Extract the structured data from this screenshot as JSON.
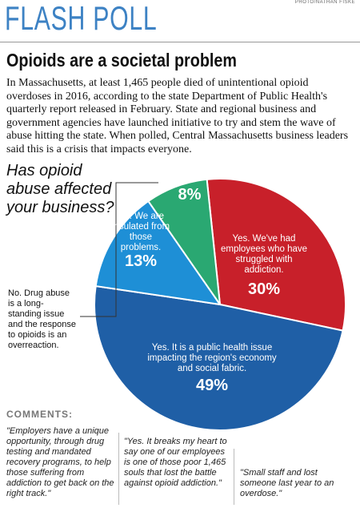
{
  "header": {
    "title": "FLASH POLL",
    "credit": "PHOTO/NATHAN FISKE"
  },
  "headline": "Opioids are a societal problem",
  "intro": "In Massachusetts, at least 1,465 people died of unintentional opioid overdoses in 2016, according to the state Department of Public Health's quarterly report released in February. State and regional business and government agencies have launched initiative to try and stem the wave of abuse hitting the state. When polled, Central Massachusetts business leaders said this is a crisis that impacts everyone.",
  "chart_data": {
    "type": "pie",
    "title": "Has opioid abuse affected your business?",
    "categories": [
      "Yes. We've had employees who have struggled with addiction.",
      "Yes. It is a public health issue impacting the region's economy and social fabric.",
      "No. We are insulated from those problems.",
      "No. Drug abuse is a long-standing issue and the response to opioids is an overreaction."
    ],
    "values": [
      30,
      49,
      13,
      8
    ],
    "value_labels": [
      "30%",
      "49%",
      "13%",
      "8%"
    ],
    "colors": [
      "#c8202a",
      "#1f5fa6",
      "#1e8fd6",
      "#2aa872"
    ]
  },
  "comments": {
    "heading": "COMMENTS:",
    "quotes": [
      "\"Employers have a unique opportunity, through drug testing and mandated recovery programs, to help those suffering from addiction to get back on the right track.\"",
      "\"Yes. It breaks my heart to say one of our employees is one of those poor 1,465 souls that lost the battle against opioid addiction.\"",
      "\"Small staff and lost someone last year to an overdose.\""
    ]
  }
}
